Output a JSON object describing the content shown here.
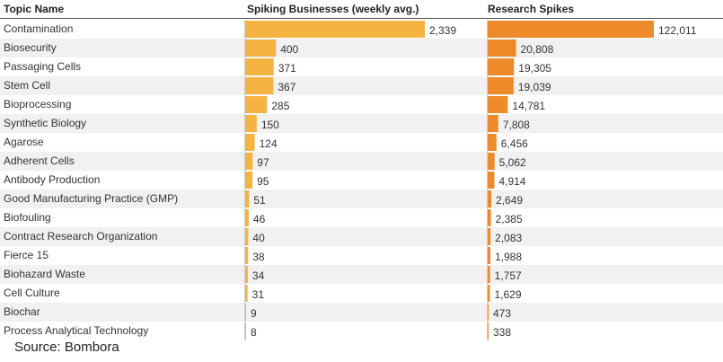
{
  "colors": {
    "businesses_bar": "#f5b342",
    "research_bar": "#ee8a2a",
    "row_stripe": "#f1f1f1",
    "header_line": "#555555",
    "axis_line": "#cfcfcf"
  },
  "chart_data": {
    "type": "bar",
    "headers": [
      "Topic Name",
      "Spiking Businesses (weekly avg.)",
      "Research Spikes"
    ],
    "categories": [
      "Contamination",
      "Biosecurity",
      "Passaging Cells",
      "Stem Cell",
      "Bioprocessing",
      "Synthetic Biology",
      "Agarose",
      "Adherent Cells",
      "Antibody Production",
      "Good Manufacturing Practice (GMP)",
      "Biofouling",
      "Contract Research Organization",
      "Fierce 15",
      "Biohazard Waste",
      "Cell Culture",
      "Biochar",
      "Process Analytical Technology"
    ],
    "series": [
      {
        "name": "Spiking Businesses (weekly avg.)",
        "values": [
          2339,
          400,
          371,
          367,
          285,
          150,
          124,
          97,
          95,
          51,
          46,
          40,
          38,
          34,
          31,
          9,
          8
        ],
        "labels": [
          "2,339",
          "400",
          "371",
          "367",
          "285",
          "150",
          "124",
          "97",
          "95",
          "51",
          "46",
          "40",
          "38",
          "34",
          "31",
          "9",
          "8"
        ]
      },
      {
        "name": "Research Spikes",
        "values": [
          122011,
          20808,
          19305,
          19039,
          14781,
          7808,
          6456,
          5062,
          4914,
          2649,
          2385,
          2083,
          1988,
          1757,
          1629,
          473,
          338
        ],
        "labels": [
          "122,011",
          "20,808",
          "19,305",
          "19,039",
          "14,781",
          "7,808",
          "6,456",
          "5,062",
          "4,914",
          "2,649",
          "2,385",
          "2,083",
          "1,988",
          "1,757",
          "1,629",
          "473",
          "338"
        ]
      }
    ]
  },
  "source_text": "Source: Bombora"
}
